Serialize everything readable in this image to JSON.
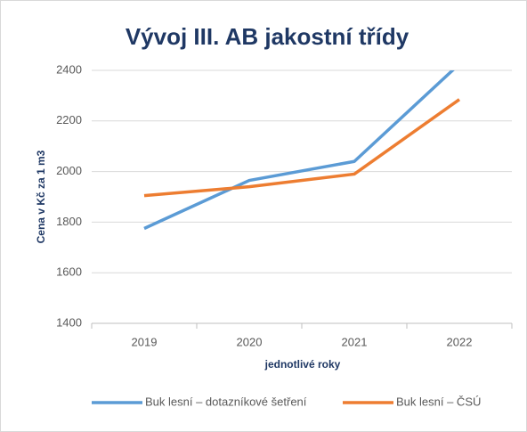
{
  "chart_data": {
    "type": "line",
    "title": "Vývoj III. AB jakostní třídy",
    "y_label": "Cena v Kč za 1 m3",
    "x_label": "jednotlivé roky",
    "categories": [
      "2019",
      "2020",
      "2021",
      "2022"
    ],
    "series": [
      {
        "name": "Buk lesní – dotazníkové šetření",
        "color": "#5b9bd5",
        "values": [
          1775,
          1965,
          2040,
          2425
        ]
      },
      {
        "name": "Buk lesní – ČSÚ",
        "color": "#ed7d31",
        "values": [
          1905,
          1940,
          1990,
          2285
        ]
      }
    ],
    "ylim": [
      1400,
      2400
    ],
    "yticks": [
      1400,
      1600,
      1800,
      2000,
      2200,
      2400
    ],
    "grid": true
  }
}
